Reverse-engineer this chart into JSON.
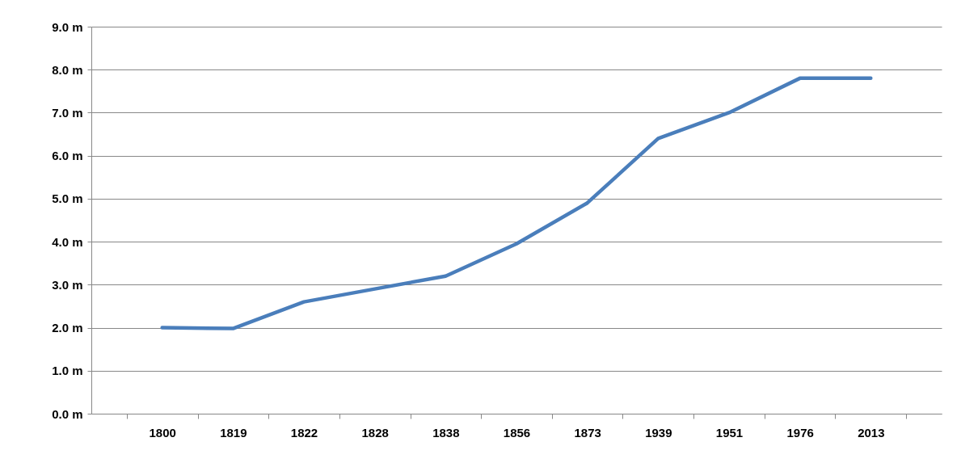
{
  "chart_data": {
    "type": "line",
    "categories": [
      "1800",
      "1819",
      "1822",
      "1828",
      "1838",
      "1856",
      "1873",
      "1939",
      "1951",
      "1976",
      "2013"
    ],
    "series": [
      {
        "color": "#4a7ebb",
        "values": [
          2.0,
          1.98,
          2.6,
          2.9,
          3.2,
          3.95,
          4.9,
          6.4,
          7.0,
          7.8,
          7.8
        ]
      }
    ],
    "ylim": [
      0,
      9
    ],
    "yticks": [
      {
        "value": 0,
        "label": "0.0 m"
      },
      {
        "value": 1,
        "label": "1.0 m"
      },
      {
        "value": 2,
        "label": "2.0 m"
      },
      {
        "value": 3,
        "label": "3.0 m"
      },
      {
        "value": 4,
        "label": "4.0 m"
      },
      {
        "value": 5,
        "label": "5.0 m"
      },
      {
        "value": 6,
        "label": "6.0 m"
      },
      {
        "value": 7,
        "label": "7.0 m"
      },
      {
        "value": 8,
        "label": "8.0 m"
      },
      {
        "value": 9,
        "label": "9.0 m"
      }
    ],
    "grid": "y",
    "legend": false,
    "marker": "none",
    "line_style": "solid"
  }
}
